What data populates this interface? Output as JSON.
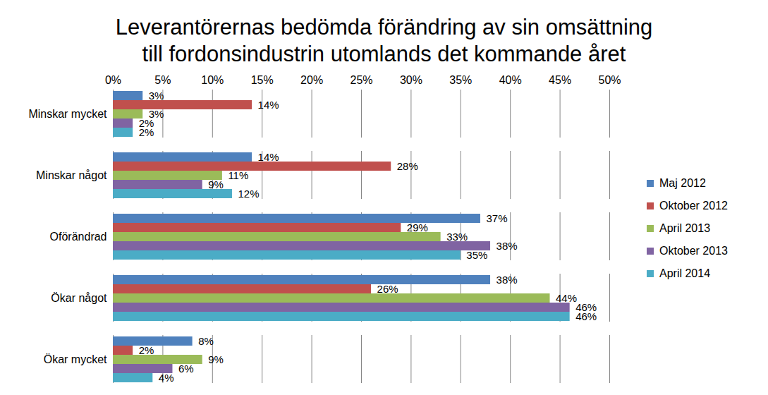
{
  "chart_data": {
    "type": "bar",
    "title": "Leverantörernas bedömda förändring av sin omsättning\ntill fordonsindustrin utomlands  det kommande året",
    "orientation": "horizontal",
    "categories": [
      "Minskar mycket",
      "Minskar något",
      "Oförändrad",
      "Ökar något",
      "Ökar mycket"
    ],
    "series": [
      {
        "name": "Maj 2012",
        "color": "#4F81BD",
        "values": [
          3,
          14,
          37,
          38,
          8
        ],
        "value_labels": [
          "3%",
          "14%",
          "37%",
          "38%",
          "8%"
        ]
      },
      {
        "name": "Oktober 2012",
        "color": "#C0504D",
        "values": [
          14,
          28,
          29,
          26,
          2
        ],
        "value_labels": [
          "14%",
          "28%",
          "29%",
          "26%",
          "2%"
        ]
      },
      {
        "name": "April 2013",
        "color": "#9BBB59",
        "values": [
          3,
          11,
          33,
          44,
          9
        ],
        "value_labels": [
          "3%",
          "11%",
          "33%",
          "44%",
          "9%"
        ]
      },
      {
        "name": "Oktober 2013",
        "color": "#8064A2",
        "values": [
          2,
          9,
          38,
          46,
          6
        ],
        "value_labels": [
          "2%",
          "9%",
          "38%",
          "46%",
          "6%"
        ]
      },
      {
        "name": "April 2014",
        "color": "#4BACC6",
        "values": [
          2,
          12,
          35,
          46,
          4
        ],
        "value_labels": [
          "2%",
          "12%",
          "35%",
          "46%",
          "4%"
        ]
      }
    ],
    "xlim": [
      0,
      50
    ],
    "xticks": [
      {
        "value": 0,
        "label": "0%"
      },
      {
        "value": 5,
        "label": "5%"
      },
      {
        "value": 10,
        "label": "10%"
      },
      {
        "value": 15,
        "label": "15%"
      },
      {
        "value": 20,
        "label": "20%"
      },
      {
        "value": 25,
        "label": "25%"
      },
      {
        "value": 30,
        "label": "30%"
      },
      {
        "value": 35,
        "label": "35%"
      },
      {
        "value": 40,
        "label": "40%"
      },
      {
        "value": 45,
        "label": "45%"
      },
      {
        "value": 50,
        "label": "50%"
      }
    ],
    "grid": true,
    "data_labels": true,
    "legend": "right"
  }
}
